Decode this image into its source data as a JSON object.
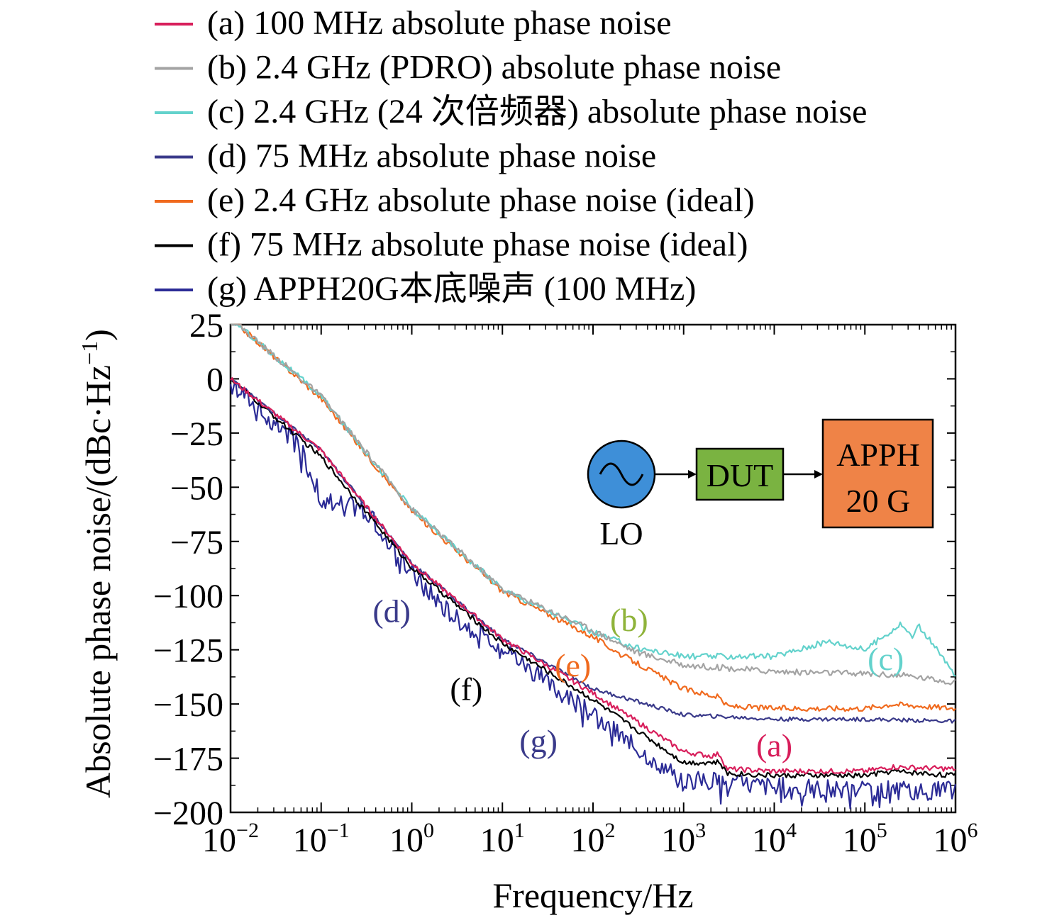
{
  "chart_data": {
    "type": "line",
    "xlabel": "Frequency/Hz",
    "ylabel": "Absolute phase noise/(dBc·Hz",
    "ylabel_sup": "−1",
    "ylabel_close": ")",
    "x_scale": "log",
    "xlim": [
      0.01,
      1000000
    ],
    "ylim": [
      -200,
      25
    ],
    "x_ticks": [
      {
        "base": "10",
        "exp": "−2",
        "value": 0.01
      },
      {
        "base": "10",
        "exp": "−1",
        "value": 0.1
      },
      {
        "base": "10",
        "exp": "0",
        "value": 1
      },
      {
        "base": "10",
        "exp": "1",
        "value": 10
      },
      {
        "base": "10",
        "exp": "2",
        "value": 100
      },
      {
        "base": "10",
        "exp": "3",
        "value": 1000
      },
      {
        "base": "10",
        "exp": "4",
        "value": 10000
      },
      {
        "base": "10",
        "exp": "5",
        "value": 100000
      },
      {
        "base": "10",
        "exp": "6",
        "value": 1000000
      }
    ],
    "y_ticks": [
      {
        "label": "25",
        "value": 25
      },
      {
        "label": "0",
        "value": 0
      },
      {
        "label": "−25",
        "value": -25
      },
      {
        "label": "−50",
        "value": -50
      },
      {
        "label": "−75",
        "value": -75
      },
      {
        "label": "−100",
        "value": -100
      },
      {
        "label": "−125",
        "value": -125
      },
      {
        "label": "−150",
        "value": -150
      },
      {
        "label": "−175",
        "value": -175
      },
      {
        "label": "−200",
        "value": -200
      }
    ],
    "grid": false,
    "legend_position": "top, above plot",
    "series": [
      {
        "key": "a",
        "name": "(a) 100 MHz absolute phase noise",
        "color": "#d81e5b",
        "x": [
          0.01,
          0.1,
          1,
          10,
          100,
          1000,
          2000,
          2500,
          3000,
          10000,
          100000,
          200000,
          1000000
        ],
        "y": [
          0,
          -33,
          -85,
          -120,
          -145,
          -172,
          -174,
          -173,
          -180,
          -181,
          -181,
          -179,
          -180
        ]
      },
      {
        "key": "b",
        "name": "(b) 2.4 GHz (PDRO) absolute phase noise",
        "color": "#a3a3a3",
        "x": [
          0.01,
          0.1,
          1,
          10,
          100,
          300,
          1000,
          10000,
          100000,
          300000,
          1000000
        ],
        "y": [
          28,
          -8,
          -60,
          -97,
          -116,
          -126,
          -132,
          -135,
          -136,
          -137,
          -140
        ]
      },
      {
        "key": "c",
        "name": "(c) 2.4 GHz (24 次倍频器) absolute phase noise",
        "color": "#63d2cc",
        "x": [
          0.01,
          0.1,
          1,
          10,
          100,
          300,
          1000,
          10000,
          40000,
          100000,
          250000,
          330000,
          400000,
          1000000
        ],
        "y": [
          28,
          -8,
          -60,
          -97,
          -117,
          -124,
          -128,
          -128,
          -121,
          -125,
          -113,
          -119,
          -114,
          -137
        ]
      },
      {
        "key": "d",
        "name": "(d) 75 MHz absolute phase noise",
        "color": "#3a3a8a",
        "x": [
          0.01,
          0.1,
          1,
          10,
          100,
          1000,
          10000,
          100000,
          1000000
        ],
        "y": [
          0,
          -33,
          -85,
          -120,
          -143,
          -155,
          -157,
          -157,
          -158
        ]
      },
      {
        "key": "e",
        "name": "(e) 2.4 GHz absolute phase noise (ideal)",
        "color": "#f06a1e",
        "x": [
          0.01,
          0.1,
          1,
          10,
          100,
          200,
          1000,
          2500,
          3000,
          10000,
          100000,
          200000,
          1000000
        ],
        "y": [
          28,
          -9,
          -61,
          -98,
          -119,
          -127,
          -143,
          -147,
          -151,
          -152,
          -152,
          -150,
          -152
        ]
      },
      {
        "key": "f",
        "name": "(f) 75 MHz absolute phase noise (ideal)",
        "color": "#000000",
        "x": [
          0.01,
          0.1,
          1,
          10,
          100,
          1000,
          2500,
          3000,
          10000,
          100000,
          200000,
          1000000
        ],
        "y": [
          0,
          -36,
          -87,
          -122,
          -148,
          -177,
          -177,
          -182,
          -183,
          -183,
          -181,
          -183
        ]
      },
      {
        "key": "g",
        "name": "(g) APPH20G本底噪声 (100 MHz)",
        "color": "#2b2b96",
        "x": [
          0.01,
          0.03,
          0.05,
          0.1,
          0.3,
          1,
          3,
          10,
          30,
          100,
          300,
          1000,
          3000,
          10000,
          100000,
          1000000
        ],
        "y": [
          0,
          -22,
          -25,
          -55,
          -60,
          -90,
          -110,
          -123,
          -140,
          -155,
          -170,
          -185,
          -186,
          -188,
          -190,
          -190
        ]
      }
    ],
    "annotations": [
      {
        "label": "(a)",
        "x": 10000,
        "y": -169,
        "color": "#d81e5b"
      },
      {
        "label": "(b)",
        "x": 250,
        "y": -111,
        "color": "#8fb33a"
      },
      {
        "label": "(c)",
        "x": 170000,
        "y": -129,
        "color": "#63d2cc"
      },
      {
        "label": "(d)",
        "x": 0.6,
        "y": -107,
        "color": "#3a3a8a"
      },
      {
        "label": "(e)",
        "x": 60,
        "y": -132,
        "color": "#f06a1e"
      },
      {
        "label": "(f)",
        "x": 4,
        "y": -143,
        "color": "#000000"
      },
      {
        "label": "(g)",
        "x": 25,
        "y": -167,
        "color": "#3a3a8a"
      }
    ]
  },
  "inset": {
    "lo_label": "LO",
    "dut_label": "DUT",
    "apph_line1": "APPH",
    "apph_line2": "20 G",
    "lo_color": "#3e8fd8",
    "dut_color": "#7ab341",
    "apph_color": "#ef8347"
  }
}
